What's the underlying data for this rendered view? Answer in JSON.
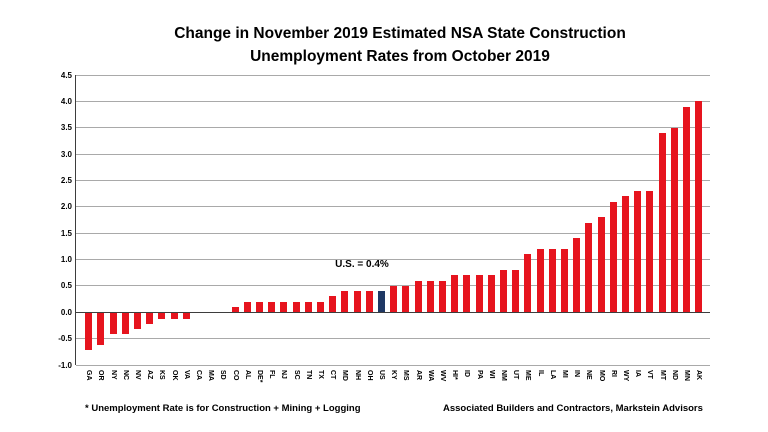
{
  "title": {
    "line1": "Change in November 2019 Estimated NSA State Construction",
    "line2": "Unemployment Rates from October 2019"
  },
  "chart_data": {
    "type": "bar",
    "title": "Change in November 2019 Estimated NSA State Construction Unemployment Rates from October 2019",
    "categories": [
      "GA",
      "OR",
      "NY",
      "NC",
      "NV",
      "AZ",
      "KS",
      "OK",
      "VA",
      "CA",
      "MA",
      "SD",
      "CO",
      "AL",
      "DE*",
      "FL",
      "NJ",
      "SC",
      "TN",
      "TX",
      "CT",
      "MD",
      "NH",
      "OH",
      "US",
      "KY",
      "MS",
      "AR",
      "WA",
      "WV",
      "HI*",
      "ID",
      "PA",
      "WI",
      "NM",
      "UT",
      "ME",
      "IL",
      "LA",
      "MI",
      "IN",
      "NE",
      "MO",
      "RI",
      "WY",
      "IA",
      "VT",
      "MT",
      "ND",
      "MN",
      "AK"
    ],
    "values": [
      -0.7,
      -0.6,
      -0.4,
      -0.4,
      -0.3,
      -0.2,
      -0.1,
      -0.1,
      -0.1,
      0,
      0,
      0,
      0.1,
      0.2,
      0.2,
      0.2,
      0.2,
      0.2,
      0.2,
      0.2,
      0.3,
      0.4,
      0.4,
      0.4,
      0.4,
      0.5,
      0.5,
      0.6,
      0.6,
      0.6,
      0.7,
      0.7,
      0.7,
      0.7,
      0.8,
      0.8,
      1.1,
      1.2,
      1.2,
      1.2,
      1.4,
      1.7,
      1.8,
      2.1,
      2.2,
      2.3,
      2.3,
      3.4,
      3.5,
      3.9,
      4.0
    ],
    "highlight_category": "US",
    "annotation": "U.S. = 0.4%",
    "xlabel": "",
    "ylabel": "",
    "ylim": [
      -1.0,
      4.5
    ],
    "ytick_labels": [
      "4.5",
      "4.0",
      "3.5",
      "3.0",
      "2.5",
      "2.0",
      "1.5",
      "1.0",
      "0.5",
      "0.0",
      "-0.5",
      "-1.0"
    ],
    "bar_color": "#e6141e",
    "highlight_color": "#1f3864",
    "grid": true,
    "legend_position": "none"
  },
  "footnotes": {
    "left": "* Unemployment Rate is for Construction + Mining + Logging",
    "right": "Associated Builders and Contractors, Markstein Advisors"
  }
}
